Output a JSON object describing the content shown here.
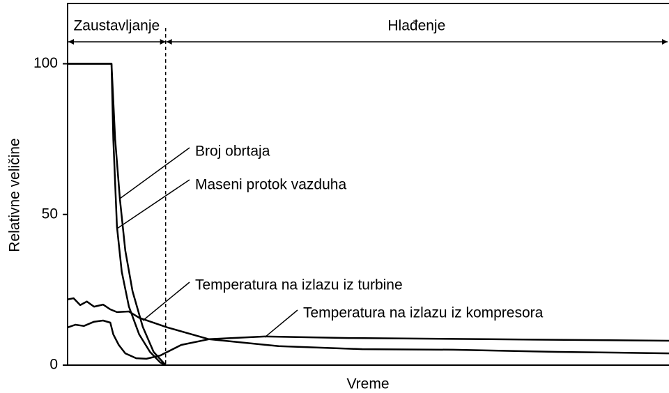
{
  "chart_data": {
    "type": "line",
    "xlabel": "Vreme",
    "ylabel": "Relativne veličine",
    "xlim": [
      0,
      100
    ],
    "ylim": [
      0,
      120
    ],
    "yticks": [
      0,
      50,
      100
    ],
    "phases": [
      {
        "label": "Zaustavljanje",
        "range": [
          0,
          16.3
        ]
      },
      {
        "label": "Hlađenje",
        "range": [
          16.3,
          100
        ]
      }
    ],
    "series": [
      {
        "name": "Broj obrtaja",
        "color": "#000000",
        "x": [
          0,
          7.3,
          7.9,
          8.7,
          9.6,
          10.8,
          12.5,
          14.3,
          16.3
        ],
        "values": [
          100,
          100,
          75,
          55,
          38,
          24.5,
          12.7,
          4.4,
          0
        ]
      },
      {
        "name": "Maseni protok vazduha",
        "color": "#000000",
        "x": [
          0,
          7.3,
          7.6,
          8.2,
          9.0,
          10.2,
          11.9,
          13.7,
          15.4,
          16.3
        ],
        "values": [
          100,
          100,
          75,
          46,
          31,
          19.4,
          10.2,
          4.4,
          0.9,
          0
        ]
      },
      {
        "name": "Temperatura na izlazu iz turbine",
        "color": "#000000",
        "x": [
          0,
          1,
          2.1,
          3.2,
          4.4,
          5.9,
          7.1,
          8.2,
          10.2,
          11.9,
          16.6,
          23.5,
          35.1,
          49,
          64.1,
          81.5,
          100
        ],
        "values": [
          21.8,
          22.2,
          19.9,
          21.1,
          19.4,
          20.1,
          18.5,
          17.6,
          17.8,
          15.7,
          12.5,
          8.6,
          6.3,
          5.3,
          5.1,
          4.4,
          3.9
        ]
      },
      {
        "name": "Temperatura na izlazu iz kompresora",
        "color": "#000000",
        "x": [
          0,
          1.3,
          2.7,
          4.4,
          5.9,
          7.1,
          7.6,
          8.5,
          9.6,
          11.4,
          13.1,
          15.4,
          18.9,
          23.5,
          32.8,
          46.7,
          69.9,
          100
        ],
        "values": [
          12.5,
          13.4,
          13.0,
          14.4,
          14.8,
          14.1,
          10.2,
          6.7,
          3.9,
          2.3,
          2.1,
          3.2,
          6.7,
          8.6,
          9.5,
          9.0,
          8.6,
          8.1
        ]
      }
    ]
  }
}
